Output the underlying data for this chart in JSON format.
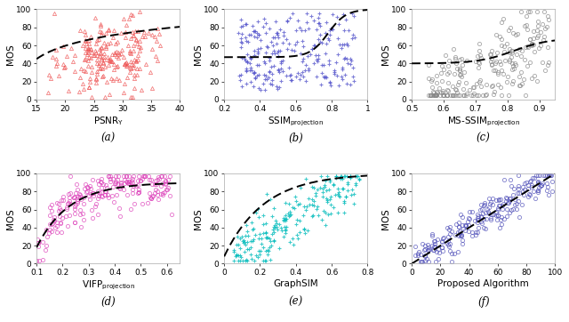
{
  "subplots": [
    {
      "label": "(a)",
      "xlabel_base": "PSNR",
      "xlabel_sub": "Y",
      "marker": "^",
      "edge_color": "#EE5555",
      "face_color": "none",
      "xlim": [
        15,
        40
      ],
      "ylim": [
        0,
        100
      ],
      "xticks": [
        15,
        20,
        25,
        30,
        35,
        40
      ],
      "xtick_labels": [
        "15",
        "20",
        "25",
        "30",
        "35",
        "40"
      ],
      "curve_type": "log_a",
      "n_points": 220
    },
    {
      "label": "(b)",
      "xlabel_base": "SSIM",
      "xlabel_sub": "projection",
      "marker": "+",
      "edge_color": "#5555CC",
      "face_color": "#5555CC",
      "xlim": [
        0.2,
        1.0
      ],
      "ylim": [
        0,
        100
      ],
      "xticks": [
        0.2,
        0.4,
        0.6,
        0.8,
        1.0
      ],
      "xtick_labels": [
        "0.2",
        "0.4",
        "0.6",
        "0.8",
        "1"
      ],
      "curve_type": "logistic_b",
      "n_points": 260
    },
    {
      "label": "(c)",
      "xlabel_base": "MS-SSIM",
      "xlabel_sub": "projection",
      "marker": "o",
      "edge_color": "#888888",
      "face_color": "none",
      "xlim": [
        0.5,
        0.95
      ],
      "ylim": [
        0,
        100
      ],
      "xticks": [
        0.5,
        0.6,
        0.7,
        0.8,
        0.9
      ],
      "xtick_labels": [
        "0.5",
        "0.6",
        "0.7",
        "0.8",
        "0.9"
      ],
      "curve_type": "logistic_c",
      "n_points": 230
    },
    {
      "label": "(d)",
      "xlabel_base": "VIFP",
      "xlabel_sub": "projection",
      "marker": "o",
      "edge_color": "#DD44BB",
      "face_color": "none",
      "xlim": [
        0.1,
        0.65
      ],
      "ylim": [
        0,
        100
      ],
      "xticks": [
        0.1,
        0.2,
        0.3,
        0.4,
        0.5,
        0.6
      ],
      "xtick_labels": [
        "0.1",
        "0.2",
        "0.3",
        "0.4",
        "0.5",
        "0.6"
      ],
      "curve_type": "log_d",
      "n_points": 230
    },
    {
      "label": "(e)",
      "xlabel_base": "GraphSIM",
      "xlabel_sub": "",
      "marker": "+",
      "edge_color": "#00BBBB",
      "face_color": "#00BBBB",
      "xlim": [
        0.0,
        0.8
      ],
      "ylim": [
        0,
        100
      ],
      "xticks": [
        0.0,
        0.2,
        0.4,
        0.6,
        0.8
      ],
      "xtick_labels": [
        "0",
        "0.2",
        "0.4",
        "0.6",
        "0.8"
      ],
      "curve_type": "log_e",
      "n_points": 230
    },
    {
      "label": "(f)",
      "xlabel_base": "Proposed Algorithm",
      "xlabel_sub": "",
      "marker": "o",
      "edge_color": "#5555BB",
      "face_color": "none",
      "xlim": [
        0,
        100
      ],
      "ylim": [
        0,
        100
      ],
      "xticks": [
        0,
        20,
        40,
        60,
        80,
        100
      ],
      "xtick_labels": [
        "0",
        "20",
        "40",
        "60",
        "80",
        "100"
      ],
      "curve_type": "linear_f",
      "n_points": 230
    }
  ],
  "ylabel": "MOS",
  "yticks": [
    0,
    20,
    40,
    60,
    80,
    100
  ],
  "ytick_labels": [
    "0",
    "20",
    "40",
    "60",
    "80",
    "100"
  ],
  "fig_facecolor": "#ffffff",
  "ax_facecolor": "#ffffff"
}
